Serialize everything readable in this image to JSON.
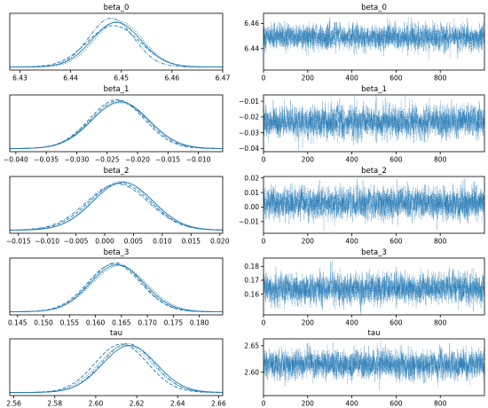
{
  "chart_data": [
    {
      "type": "line",
      "title": "beta_0",
      "xlim": [
        6.428,
        6.47
      ],
      "xticks": [
        6.43,
        6.44,
        6.45,
        6.46,
        6.47
      ],
      "tick_labels": [
        "6.43",
        "6.44",
        "6.45",
        "6.46",
        "6.47"
      ],
      "series": [
        {
          "styles": "solid",
          "mean": 6.449,
          "sd": 0.0048
        },
        {
          "styles": "dashed",
          "mean": 6.4485,
          "sd": 0.0052
        },
        {
          "styles": "dotted",
          "mean": 6.4495,
          "sd": 0.0047
        },
        {
          "styles": "dashdot",
          "mean": 6.448,
          "sd": 0.0044
        }
      ],
      "yticks": [],
      "tick_labels_y": []
    },
    {
      "type": "line",
      "title": "beta_0",
      "xlim": [
        0,
        1000
      ],
      "xticks": [
        0,
        200,
        400,
        600,
        800
      ],
      "tick_labels": [
        "0",
        "200",
        "400",
        "600",
        "800"
      ],
      "ylim": [
        6.423,
        6.468
      ],
      "yticks": [
        6.44,
        6.46
      ],
      "tick_labels_y": [
        "6.44",
        "6.46"
      ],
      "trace": {
        "draws": 1000,
        "chains": 4,
        "mean": 6.449,
        "sd": 0.0048
      }
    },
    {
      "type": "line",
      "title": "beta_1",
      "xlim": [
        -0.041,
        -0.006
      ],
      "xticks": [
        -0.04,
        -0.035,
        -0.03,
        -0.025,
        -0.02,
        -0.015,
        -0.01
      ],
      "tick_labels": [
        "−0.040",
        "−0.035",
        "−0.030",
        "−0.025",
        "−0.020",
        "−0.015",
        "−0.010"
      ],
      "series": [
        {
          "styles": "solid",
          "mean": -0.0228,
          "sd": 0.0047
        },
        {
          "styles": "dashed",
          "mean": -0.0234,
          "sd": 0.0045
        },
        {
          "styles": "dotted",
          "mean": -0.0229,
          "sd": 0.0048
        },
        {
          "styles": "dashdot",
          "mean": -0.0231,
          "sd": 0.0046
        }
      ],
      "yticks": [],
      "tick_labels_y": []
    },
    {
      "type": "line",
      "title": "beta_1",
      "xlim": [
        0,
        1000
      ],
      "xticks": [
        0,
        200,
        400,
        600,
        800
      ],
      "tick_labels": [
        "0",
        "200",
        "400",
        "600",
        "800"
      ],
      "ylim": [
        -0.042,
        -0.006
      ],
      "yticks": [
        -0.01,
        -0.02,
        -0.03,
        -0.04
      ],
      "tick_labels_y": [
        "−0.01",
        "−0.02",
        "−0.03",
        "−0.04"
      ],
      "trace": {
        "draws": 1000,
        "chains": 4,
        "mean": -0.023,
        "sd": 0.0047
      }
    },
    {
      "type": "line",
      "title": "beta_2",
      "xlim": [
        -0.0165,
        0.0205
      ],
      "xticks": [
        -0.015,
        -0.01,
        -0.005,
        0,
        0.005,
        0.01,
        0.015,
        0.02
      ],
      "tick_labels": [
        "−0.015",
        "−0.010",
        "−0.005",
        "0.000",
        "0.005",
        "0.010",
        "0.015",
        "0.020"
      ],
      "series": [
        {
          "styles": "solid",
          "mean": 0.0032,
          "sd": 0.0052
        },
        {
          "styles": "dashed",
          "mean": 0.0026,
          "sd": 0.0053
        },
        {
          "styles": "dotted",
          "mean": 0.0029,
          "sd": 0.0051
        },
        {
          "styles": "dashdot",
          "mean": 0.0022,
          "sd": 0.0054
        }
      ],
      "yticks": [],
      "tick_labels_y": []
    },
    {
      "type": "line",
      "title": "beta_2",
      "xlim": [
        0,
        1000
      ],
      "xticks": [
        0,
        200,
        400,
        600,
        800
      ],
      "tick_labels": [
        "0",
        "200",
        "400",
        "600",
        "800"
      ],
      "ylim": [
        -0.018,
        0.021
      ],
      "yticks": [
        0.02,
        0.01,
        0.0,
        -0.01
      ],
      "tick_labels_y": [
        "0.02",
        "0.01",
        "0.00",
        "−0.01"
      ],
      "trace": {
        "draws": 1000,
        "chains": 4,
        "mean": 0.0028,
        "sd": 0.0052
      }
    },
    {
      "type": "line",
      "title": "beta_3",
      "xlim": [
        0.1435,
        0.1845
      ],
      "xticks": [
        0.145,
        0.15,
        0.155,
        0.16,
        0.165,
        0.17,
        0.175,
        0.18
      ],
      "tick_labels": [
        "0.145",
        "0.150",
        "0.155",
        "0.160",
        "0.165",
        "0.170",
        "0.175",
        "0.180"
      ],
      "series": [
        {
          "styles": "solid",
          "mean": 0.1642,
          "sd": 0.0052
        },
        {
          "styles": "dashed",
          "mean": 0.1636,
          "sd": 0.0051
        },
        {
          "styles": "dotted",
          "mean": 0.1646,
          "sd": 0.0053
        },
        {
          "styles": "dashdot",
          "mean": 0.1639,
          "sd": 0.005
        }
      ],
      "yticks": [],
      "tick_labels_y": []
    },
    {
      "type": "line",
      "title": "beta_3",
      "xlim": [
        0,
        1000
      ],
      "xticks": [
        0,
        200,
        400,
        600,
        800
      ],
      "tick_labels": [
        "0",
        "200",
        "400",
        "600",
        "800"
      ],
      "ylim": [
        0.145,
        0.186
      ],
      "yticks": [
        0.18,
        0.17,
        0.16
      ],
      "tick_labels_y": [
        "0.18",
        "0.17",
        "0.16"
      ],
      "trace": {
        "draws": 1000,
        "chains": 4,
        "mean": 0.1641,
        "sd": 0.0052
      }
    },
    {
      "type": "line",
      "title": "tau",
      "xlim": [
        2.558,
        2.662
      ],
      "xticks": [
        2.56,
        2.58,
        2.6,
        2.62,
        2.64,
        2.66
      ],
      "tick_labels": [
        "2.56",
        "2.58",
        "2.60",
        "2.62",
        "2.64",
        "2.66"
      ],
      "series": [
        {
          "styles": "solid",
          "mean": 2.6165,
          "sd": 0.0132
        },
        {
          "styles": "dashed",
          "mean": 2.6125,
          "sd": 0.0128
        },
        {
          "styles": "dotted",
          "mean": 2.6145,
          "sd": 0.0131
        },
        {
          "styles": "dashdot",
          "mean": 2.6155,
          "sd": 0.0127
        }
      ],
      "yticks": [],
      "tick_labels_y": []
    },
    {
      "type": "line",
      "title": "tau",
      "xlim": [
        0,
        1000
      ],
      "xticks": [
        0,
        200,
        400,
        600,
        800
      ],
      "tick_labels": [
        "0",
        "200",
        "400",
        "600",
        "800"
      ],
      "ylim": [
        2.556,
        2.663
      ],
      "yticks": [
        2.65,
        2.6
      ],
      "tick_labels_y": [
        "2.65",
        "2.60"
      ],
      "trace": {
        "draws": 1000,
        "chains": 4,
        "mean": 2.6145,
        "sd": 0.013
      }
    }
  ],
  "colors": {
    "line": "#1f77b4"
  }
}
